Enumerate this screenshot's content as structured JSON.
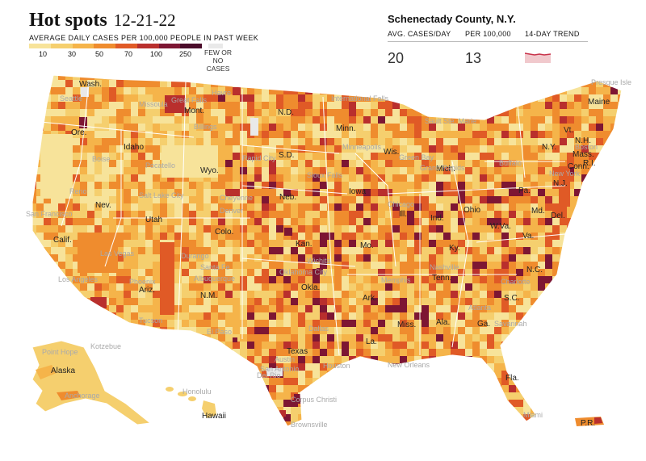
{
  "header": {
    "title": "Hot spots",
    "date": "12-21-22",
    "subtitle": "AVERAGE DAILY CASES PER 100,000 PEOPLE IN PAST WEEK"
  },
  "legend": {
    "ticks": [
      "10",
      "30",
      "50",
      "70",
      "100",
      "250"
    ],
    "no_cases_label": "FEW OR NO CASES",
    "colors": [
      "#f7e39a",
      "#f5cf6e",
      "#f5b44a",
      "#ef8c2e",
      "#e05a26",
      "#b92f2d",
      "#7d1633",
      "#4a0c2a"
    ],
    "no_cases_color": "#e9e9e9"
  },
  "county": {
    "name": "Schenectady County, N.Y.",
    "avg_label": "AVG. CASES/DAY",
    "avg_value": "20",
    "per_label": "PER 100,000",
    "per_value": "13",
    "trend_label": "14-DAY TREND",
    "trend_color": "#e8a3a9"
  },
  "map": {
    "state_labels": [
      "Wash.",
      "Mont.",
      "N.D.",
      "Minn.",
      "Ore.",
      "Idaho",
      "Wyo.",
      "S.D.",
      "Wis.",
      "Mich.",
      "Maine",
      "Vt.",
      "N.H.",
      "N.Y.",
      "Mass.",
      "R.I.",
      "Conn.",
      "Nev.",
      "Utah",
      "Colo.",
      "Neb.",
      "Iowa",
      "Ill.",
      "Ind.",
      "Ohio",
      "Pa.",
      "N.J.",
      "Md.",
      "Del.",
      "W.Va.",
      "Va.",
      "Calif.",
      "Kan.",
      "Mo.",
      "Ky.",
      "Ariz.",
      "N.M.",
      "Okla.",
      "Ark.",
      "Tenn.",
      "N.C.",
      "S.C.",
      "Texas",
      "Miss.",
      "Ala.",
      "Ga.",
      "La.",
      "Fla.",
      "Alaska",
      "Hawaii",
      "P.R."
    ],
    "city_labels": [
      "Havre",
      "International Falls",
      "Sault Ste. Marie",
      "Presque Isle",
      "Seattle",
      "Great Falls",
      "Missoula",
      "Billings",
      "Boise",
      "Pocatello",
      "Rapid City",
      "Sioux Falls",
      "Minneapolis",
      "Green Bay",
      "Grand Rapids",
      "Buffalo",
      "Boston",
      "New York",
      "Chicago",
      "Salt Lake City",
      "Cheyenne",
      "Denver",
      "Reno",
      "San Francisco",
      "Las Vegas",
      "Los Angeles",
      "Albuquerque",
      "Santa Fe",
      "Phoenix",
      "Tucson",
      "El Paso",
      "Dallas",
      "Austin",
      "Houston",
      "San Antonio",
      "Corpus Christi",
      "Brownsville",
      "Oklahoma City",
      "Memphis",
      "Nashville",
      "Atlanta",
      "Charlotte",
      "Savannah",
      "New Orleans",
      "Miami",
      "Anchorage",
      "Honolulu",
      "Point Hope",
      "Kotzebue",
      "Del Rio",
      "Durango",
      "Wichita"
    ]
  }
}
